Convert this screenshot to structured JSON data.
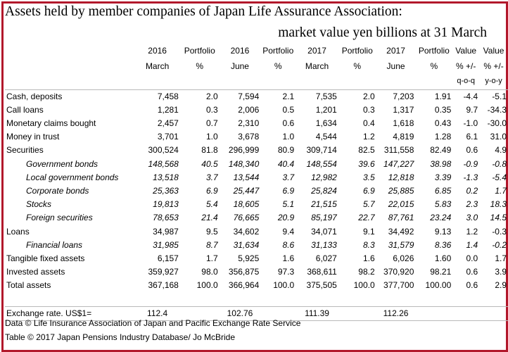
{
  "title_line1": "Assets held by member companies of Japan Life Assurance Association:",
  "title_line2": "market value yen billions at 31 March",
  "header_row1": [
    "",
    "2016",
    "Portfolio",
    "2016",
    "Portfolio",
    "2017",
    "Portfolio",
    "2017",
    "Portfolio",
    "Value",
    "Value"
  ],
  "header_row2": [
    "",
    "March",
    "%",
    "June",
    "%",
    "March",
    "%",
    "June",
    "%",
    "% +/-",
    "% +/-"
  ],
  "header_row3": [
    "",
    "",
    "",
    "",
    "",
    "",
    "",
    "",
    "",
    "q-o-q",
    "y-o-y"
  ],
  "rows": [
    {
      "label": "Cash, deposits",
      "values": [
        "7,458",
        "2.0",
        "7,594",
        "2.1",
        "7,535",
        "2.0",
        "7,203",
        "1.91",
        "-4.4",
        "-5.1"
      ]
    },
    {
      "label": "Call loans",
      "values": [
        "1,281",
        "0.3",
        "2,006",
        "0.5",
        "1,201",
        "0.3",
        "1,317",
        "0.35",
        "9.7",
        "-34.3"
      ]
    },
    {
      "label": "Monetary claims bought",
      "values": [
        "2,457",
        "0.7",
        "2,310",
        "0.6",
        "1,634",
        "0.4",
        "1,618",
        "0.43",
        "-1.0",
        "-30.0"
      ]
    },
    {
      "label": "Money in trust",
      "values": [
        "3,701",
        "1.0",
        "3,678",
        "1.0",
        "4,544",
        "1.2",
        "4,819",
        "1.28",
        "6.1",
        "31.0"
      ]
    },
    {
      "label": "Securities",
      "values": [
        "300,524",
        "81.8",
        "296,999",
        "80.9",
        "309,714",
        "82.5",
        "311,558",
        "82.49",
        "0.6",
        "4.9"
      ]
    },
    {
      "label": "Government bonds",
      "values": [
        "148,568",
        "40.5",
        "148,340",
        "40.4",
        "148,554",
        "39.6",
        "147,227",
        "38.98",
        "-0.9",
        "-0.8"
      ]
    },
    {
      "label": "Local government bonds",
      "values": [
        "13,518",
        "3.7",
        "13,544",
        "3.7",
        "12,982",
        "3.5",
        "12,818",
        "3.39",
        "-1.3",
        "-5.4"
      ]
    },
    {
      "label": "Corporate bonds",
      "values": [
        "25,363",
        "6.9",
        "25,447",
        "6.9",
        "25,824",
        "6.9",
        "25,885",
        "6.85",
        "0.2",
        "1.7"
      ]
    },
    {
      "label": "Stocks",
      "values": [
        "19,813",
        "5.4",
        "18,605",
        "5.1",
        "21,515",
        "5.7",
        "22,015",
        "5.83",
        "2.3",
        "18.3"
      ]
    },
    {
      "label": "Foreign securities",
      "values": [
        "78,653",
        "21.4",
        "76,665",
        "20.9",
        "85,197",
        "22.7",
        "87,761",
        "23.24",
        "3.0",
        "14.5"
      ]
    },
    {
      "label": "Loans",
      "values": [
        "34,987",
        "9.5",
        "34,602",
        "9.4",
        "34,071",
        "9.1",
        "34,492",
        "9.13",
        "1.2",
        "-0.3"
      ]
    },
    {
      "label": "Financial loans",
      "values": [
        "31,985",
        "8.7",
        "31,634",
        "8.6",
        "31,133",
        "8.3",
        "31,579",
        "8.36",
        "1.4",
        "-0.2"
      ]
    },
    {
      "label": "Tangible fixed assets",
      "values": [
        "6,157",
        "1.7",
        "5,925",
        "1.6",
        "6,027",
        "1.6",
        "6,026",
        "1.60",
        "0.0",
        "1.7"
      ]
    },
    {
      "label": "Invested assets",
      "values": [
        "359,927",
        "98.0",
        "356,875",
        "97.3",
        "368,611",
        "98.2",
        "370,920",
        "98.21",
        "0.6",
        "3.9"
      ]
    },
    {
      "label": "Total assets",
      "values": [
        "367,168",
        "100.0",
        "366,964",
        "100.0",
        "375,505",
        "100.0",
        "377,700",
        "100.00",
        "0.6",
        "2.9"
      ]
    }
  ],
  "exchange_rate": {
    "label": "Exchange rate. US$1=",
    "values": [
      "112.4",
      "102.76",
      "111.39",
      "112.26"
    ]
  },
  "source_line1": "Data © Life Insurance Association of Japan and Pacific Exchange Rate Service",
  "source_line2": "Table © 2017 Japan Pensions Industry Database/ Jo McBride"
}
